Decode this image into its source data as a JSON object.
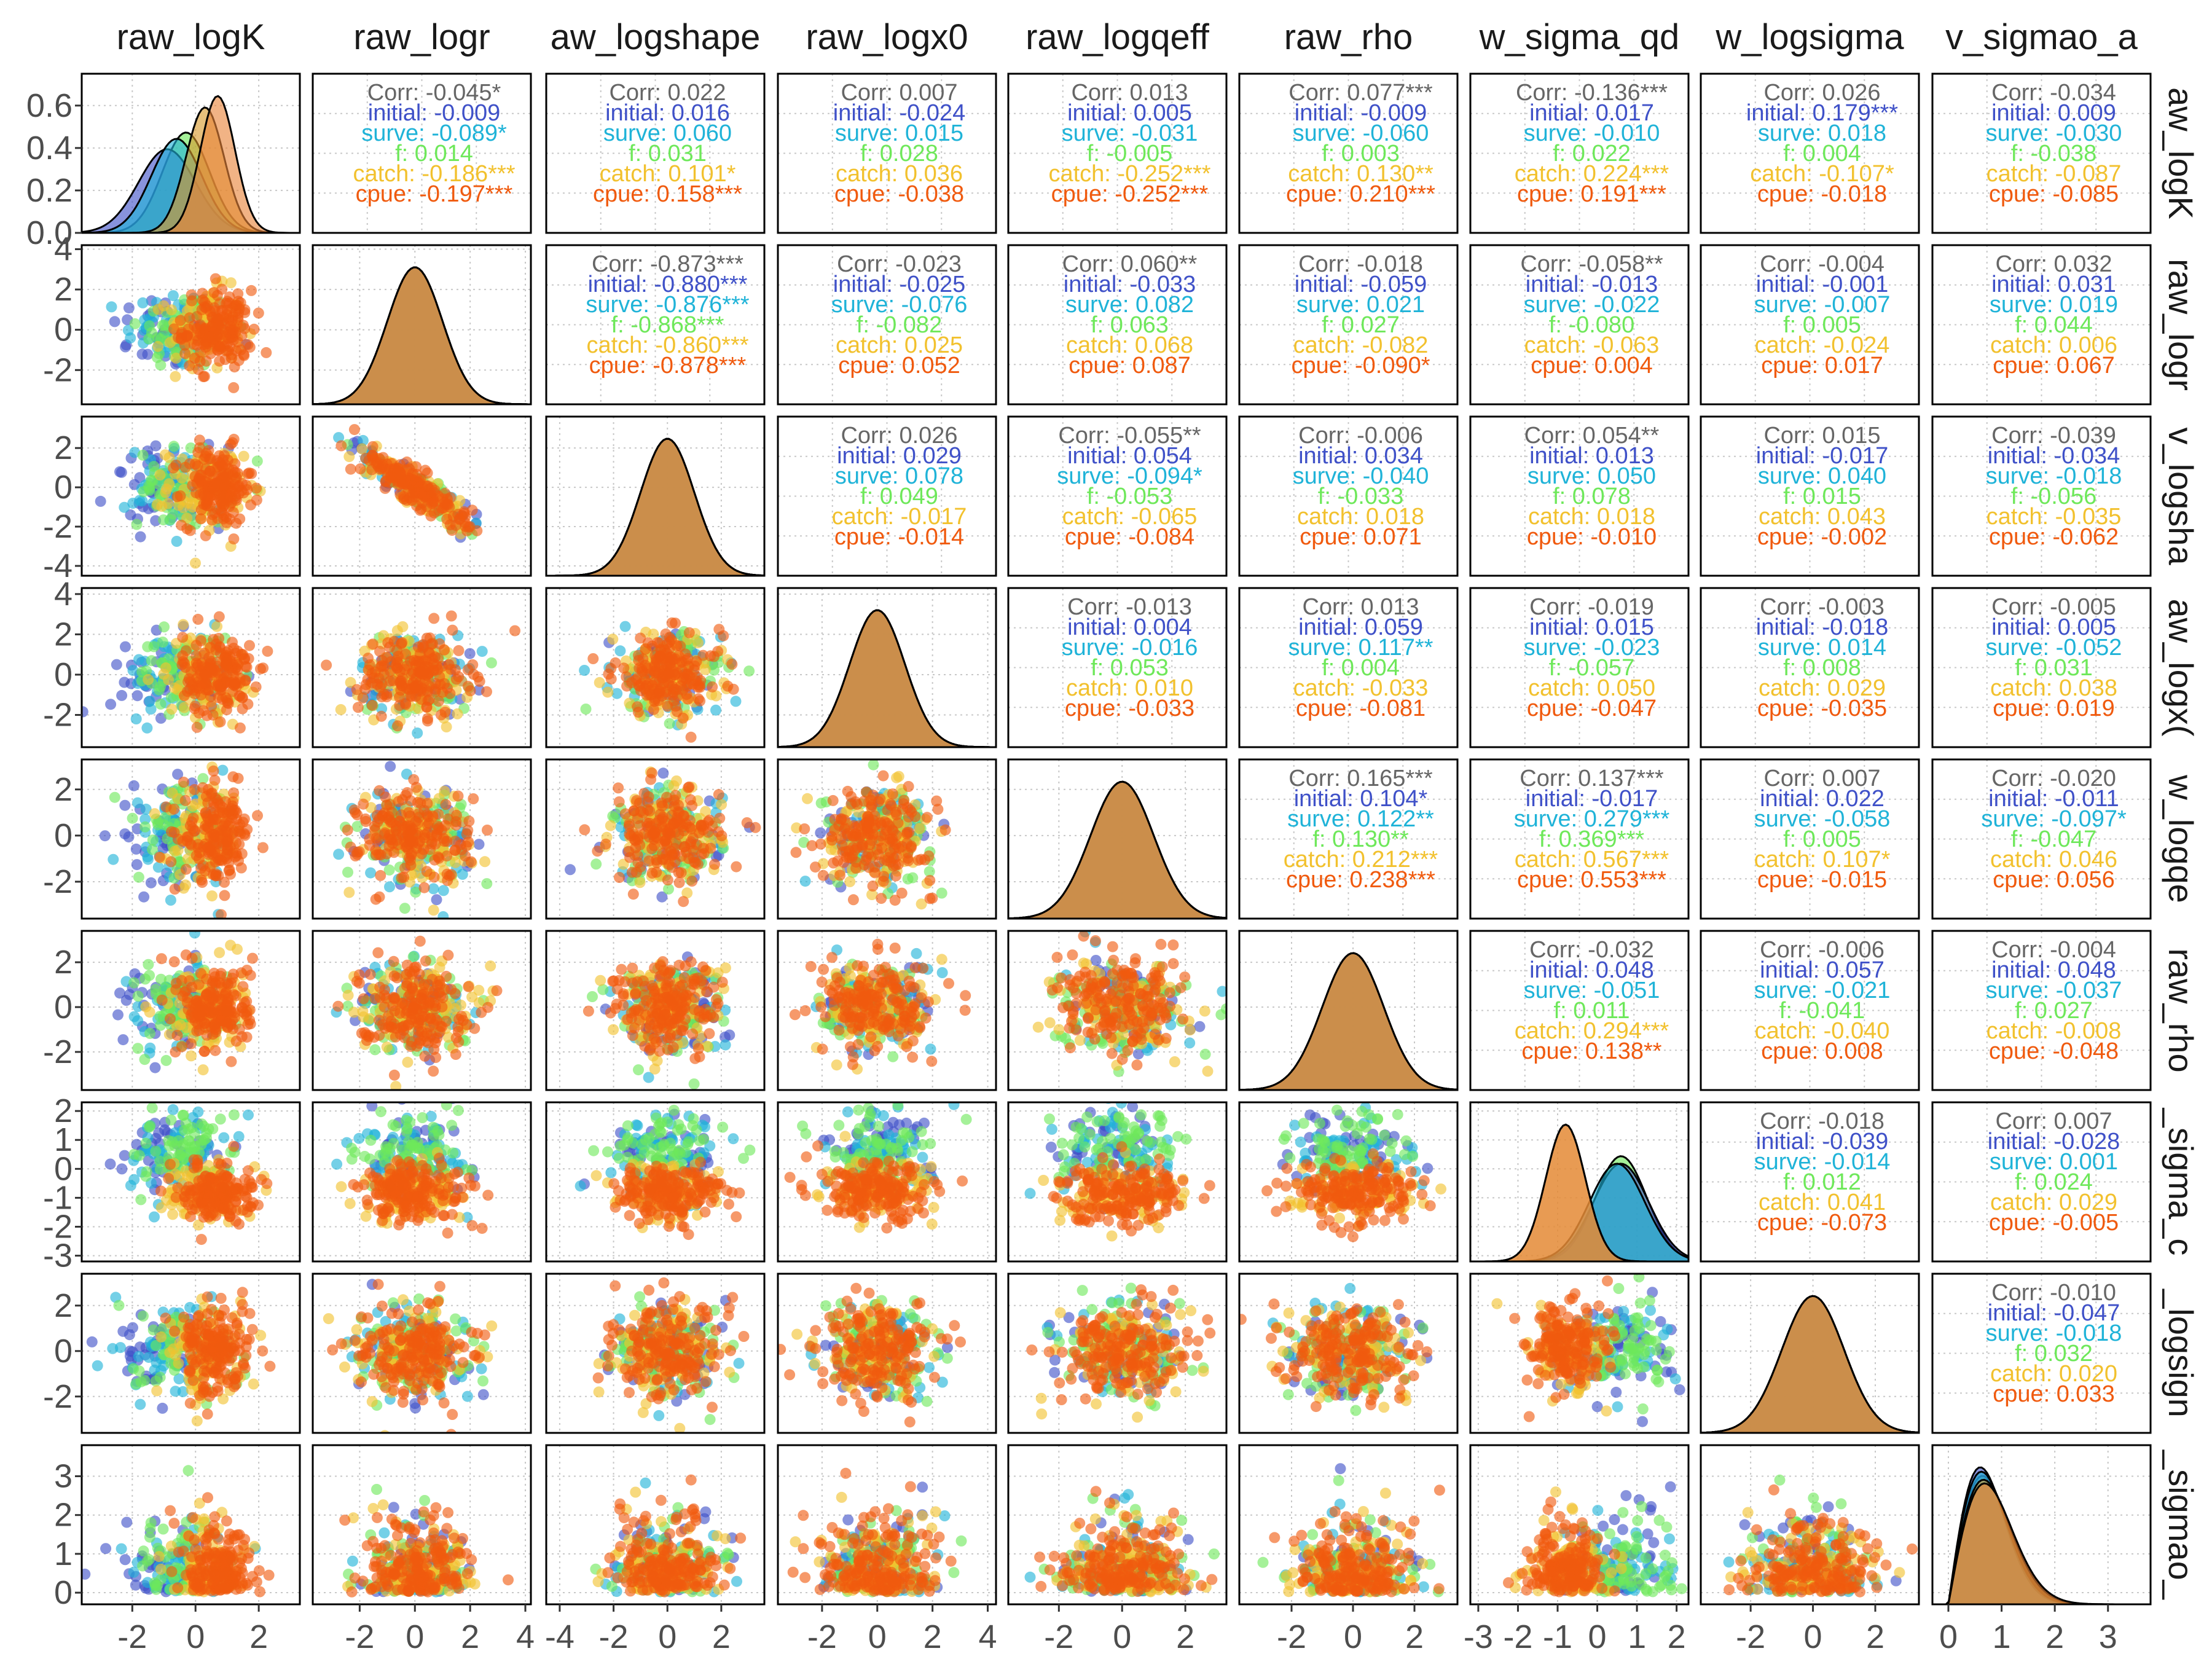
{
  "chart_data": {
    "type": "scatter-matrix",
    "variables": [
      "raw_logK",
      "raw_logr",
      "raw_logshape",
      "raw_logx0",
      "raw_logqeff",
      "raw_rho",
      "raw_sigma_qd",
      "raw_logsigma",
      "raw_sigmao_a"
    ],
    "column_labels": [
      "raw_logK",
      "raw_logr",
      "aw_logshape",
      "raw_logx0",
      "raw_logqeff",
      "raw_rho",
      "w_sigma_qd",
      "w_logsigma",
      "v_sigmao_a"
    ],
    "row_labels": [
      "aw_logK",
      "raw_logr",
      "v_logsha",
      "aw_logx(",
      "w_logqe",
      "raw_rho",
      "_sigma_c",
      "_logsign",
      "_sigmao_"
    ],
    "groups": [
      "initial",
      "surve",
      "f",
      "catch",
      "cpue"
    ],
    "colors": {
      "initial": "#3F51C8",
      "surve": "#1FB3D8",
      "f": "#6EE85A",
      "catch": "#F2C12E",
      "cpue": "#F05A0E",
      "corr": "#666666",
      "panel_border": "#000000",
      "grid": "#c8c8c8",
      "strip_text": "#1a1a1a",
      "tick_text": "#4d4d4d"
    },
    "correlations": [
      {
        "row": 0,
        "col": 1,
        "corr": "-0.045*",
        "initial": "-0.009",
        "surve": "-0.089*",
        "f": "0.014",
        "catch": "-0.186***",
        "cpue": "-0.197***"
      },
      {
        "row": 0,
        "col": 2,
        "corr": "0.022",
        "initial": "0.016",
        "surve": "0.060",
        "f": "0.031",
        "catch": "0.101*",
        "cpue": "0.158***"
      },
      {
        "row": 0,
        "col": 3,
        "corr": "0.007",
        "initial": "-0.024",
        "surve": "0.015",
        "f": "0.028",
        "catch": "0.036",
        "cpue": "-0.038"
      },
      {
        "row": 0,
        "col": 4,
        "corr": "0.013",
        "initial": "0.005",
        "surve": "-0.031",
        "f": "-0.005",
        "catch": "-0.252***",
        "cpue": "-0.252***"
      },
      {
        "row": 0,
        "col": 5,
        "corr": "0.077***",
        "initial": "-0.009",
        "surve": "-0.060",
        "f": "0.003",
        "catch": "0.130**",
        "cpue": "0.210***"
      },
      {
        "row": 0,
        "col": 6,
        "corr": "-0.136***",
        "initial": "0.017",
        "surve": "-0.010",
        "f": "0.022",
        "catch": "0.224***",
        "cpue": "0.191***"
      },
      {
        "row": 0,
        "col": 7,
        "corr": "0.026",
        "initial": "0.179***",
        "surve": "0.018",
        "f": "0.004",
        "catch": "-0.107*",
        "cpue": "-0.018"
      },
      {
        "row": 0,
        "col": 8,
        "corr": "-0.034",
        "initial": "0.009",
        "surve": "-0.030",
        "f": "-0.038",
        "catch": "-0.087",
        "cpue": "-0.085"
      },
      {
        "row": 1,
        "col": 2,
        "corr": "-0.873***",
        "initial": "-0.880***",
        "surve": "-0.876***",
        "f": "-0.868***",
        "catch": "-0.860***",
        "cpue": "-0.878***"
      },
      {
        "row": 1,
        "col": 3,
        "corr": "-0.023",
        "initial": "-0.025",
        "surve": "-0.076",
        "f": "-0.082",
        "catch": "0.025",
        "cpue": "0.052"
      },
      {
        "row": 1,
        "col": 4,
        "corr": "0.060**",
        "initial": "-0.033",
        "surve": "0.082",
        "f": "0.063",
        "catch": "0.068",
        "cpue": "0.087"
      },
      {
        "row": 1,
        "col": 5,
        "corr": "-0.018",
        "initial": "-0.059",
        "surve": "0.021",
        "f": "0.027",
        "catch": "-0.082",
        "cpue": "-0.090*"
      },
      {
        "row": 1,
        "col": 6,
        "corr": "-0.058**",
        "initial": "-0.013",
        "surve": "-0.022",
        "f": "-0.080",
        "catch": "-0.063",
        "cpue": "0.004"
      },
      {
        "row": 1,
        "col": 7,
        "corr": "-0.004",
        "initial": "-0.001",
        "surve": "-0.007",
        "f": "0.005",
        "catch": "-0.024",
        "cpue": "0.017"
      },
      {
        "row": 1,
        "col": 8,
        "corr": "0.032",
        "initial": "0.031",
        "surve": "0.019",
        "f": "0.044",
        "catch": "0.006",
        "cpue": "0.067"
      },
      {
        "row": 2,
        "col": 3,
        "corr": "0.026",
        "initial": "0.029",
        "surve": "0.078",
        "f": "0.049",
        "catch": "-0.017",
        "cpue": "-0.014"
      },
      {
        "row": 2,
        "col": 4,
        "corr": "-0.055**",
        "initial": "0.054",
        "surve": "-0.094*",
        "f": "-0.053",
        "catch": "-0.065",
        "cpue": "-0.084"
      },
      {
        "row": 2,
        "col": 5,
        "corr": "-0.006",
        "initial": "0.034",
        "surve": "-0.040",
        "f": "-0.033",
        "catch": "0.018",
        "cpue": "0.071"
      },
      {
        "row": 2,
        "col": 6,
        "corr": "0.054**",
        "initial": "0.013",
        "surve": "0.050",
        "f": "0.078",
        "catch": "0.018",
        "cpue": "-0.010"
      },
      {
        "row": 2,
        "col": 7,
        "corr": "0.015",
        "initial": "-0.017",
        "surve": "0.040",
        "f": "0.015",
        "catch": "0.043",
        "cpue": "-0.002"
      },
      {
        "row": 2,
        "col": 8,
        "corr": "-0.039",
        "initial": "-0.034",
        "surve": "-0.018",
        "f": "-0.056",
        "catch": "-0.035",
        "cpue": "-0.062"
      },
      {
        "row": 3,
        "col": 4,
        "corr": "-0.013",
        "initial": "0.004",
        "surve": "-0.016",
        "f": "0.053",
        "catch": "0.010",
        "cpue": "-0.033"
      },
      {
        "row": 3,
        "col": 5,
        "corr": "0.013",
        "initial": "0.059",
        "surve": "0.117**",
        "f": "0.004",
        "catch": "-0.033",
        "cpue": "-0.081"
      },
      {
        "row": 3,
        "col": 6,
        "corr": "-0.019",
        "initial": "0.015",
        "surve": "-0.023",
        "f": "-0.057",
        "catch": "0.050",
        "cpue": "-0.047"
      },
      {
        "row": 3,
        "col": 7,
        "corr": "-0.003",
        "initial": "-0.018",
        "surve": "0.014",
        "f": "0.008",
        "catch": "0.029",
        "cpue": "-0.035"
      },
      {
        "row": 3,
        "col": 8,
        "corr": "-0.005",
        "initial": "0.005",
        "surve": "-0.052",
        "f": "0.031",
        "catch": "0.038",
        "cpue": "0.019"
      },
      {
        "row": 4,
        "col": 5,
        "corr": "0.165***",
        "initial": "0.104*",
        "surve": "0.122**",
        "f": "0.130**",
        "catch": "0.212***",
        "cpue": "0.238***"
      },
      {
        "row": 4,
        "col": 6,
        "corr": "0.137***",
        "initial": "-0.017",
        "surve": "0.279***",
        "f": "0.369***",
        "catch": "0.567***",
        "cpue": "0.553***"
      },
      {
        "row": 4,
        "col": 7,
        "corr": "0.007",
        "initial": "0.022",
        "surve": "-0.058",
        "f": "0.005",
        "catch": "0.107*",
        "cpue": "-0.015"
      },
      {
        "row": 4,
        "col": 8,
        "corr": "-0.020",
        "initial": "-0.011",
        "surve": "-0.097*",
        "f": "-0.047",
        "catch": "0.046",
        "cpue": "0.056"
      },
      {
        "row": 5,
        "col": 6,
        "corr": "-0.032",
        "initial": "0.048",
        "surve": "-0.051",
        "f": "0.011",
        "catch": "0.294***",
        "cpue": "0.138**"
      },
      {
        "row": 5,
        "col": 7,
        "corr": "-0.006",
        "initial": "0.057",
        "surve": "-0.021",
        "f": "-0.041",
        "catch": "-0.040",
        "cpue": "0.008"
      },
      {
        "row": 5,
        "col": 8,
        "corr": "-0.004",
        "initial": "0.048",
        "surve": "-0.037",
        "f": "0.027",
        "catch": "-0.008",
        "cpue": "-0.048"
      },
      {
        "row": 6,
        "col": 7,
        "corr": "-0.018",
        "initial": "-0.039",
        "surve": "-0.014",
        "f": "0.012",
        "catch": "0.041",
        "cpue": "-0.073"
      },
      {
        "row": 6,
        "col": 8,
        "corr": "0.007",
        "initial": "-0.028",
        "surve": "0.001",
        "f": "0.024",
        "catch": "0.029",
        "cpue": "-0.005"
      },
      {
        "row": 7,
        "col": 8,
        "corr": "-0.010",
        "initial": "-0.047",
        "surve": "-0.018",
        "f": "0.032",
        "catch": "0.020",
        "cpue": "0.033"
      }
    ],
    "left_ticks": [
      {
        "ticks": [
          "0.0",
          "0.2",
          "0.4",
          "0.6"
        ],
        "values": [
          0,
          0.2,
          0.4,
          0.6
        ],
        "range": [
          0,
          0.75
        ]
      },
      {
        "ticks": [
          "-2",
          "0",
          "2",
          "4"
        ],
        "values": [
          -2,
          0,
          2,
          4
        ],
        "range": [
          -3.7,
          4.2
        ]
      },
      {
        "ticks": [
          "-4",
          "-2",
          "0",
          "2"
        ],
        "values": [
          -4,
          -2,
          0,
          2
        ],
        "range": [
          -4.5,
          3.6
        ]
      },
      {
        "ticks": [
          "-2",
          "0",
          "2",
          "4"
        ],
        "values": [
          -2,
          0,
          2,
          4
        ],
        "range": [
          -3.6,
          4.3
        ]
      },
      {
        "ticks": [
          "-2",
          "0",
          "2"
        ],
        "values": [
          -2,
          0,
          2
        ],
        "range": [
          -3.6,
          3.3
        ]
      },
      {
        "ticks": [
          "-2",
          "0",
          "2"
        ],
        "values": [
          -2,
          0,
          2
        ],
        "range": [
          -3.7,
          3.4
        ]
      },
      {
        "ticks": [
          "-3",
          "-2",
          "-1",
          "0",
          "1",
          "2"
        ],
        "values": [
          -3,
          -2,
          -1,
          0,
          1,
          2
        ],
        "range": [
          -3.2,
          2.3
        ]
      },
      {
        "ticks": [
          "-2",
          "0",
          "2"
        ],
        "values": [
          -2,
          0,
          2
        ],
        "range": [
          -3.6,
          3.4
        ]
      },
      {
        "ticks": [
          "0",
          "1",
          "2",
          "3"
        ],
        "values": [
          0,
          1,
          2,
          3
        ],
        "range": [
          -0.3,
          3.8
        ]
      }
    ],
    "bottom_ticks": [
      {
        "ticks": [
          "-2",
          "0",
          "2"
        ],
        "values": [
          -2,
          0,
          2
        ],
        "range": [
          -3.6,
          3.3
        ]
      },
      {
        "ticks": [
          "-2",
          "0",
          "2",
          "4"
        ],
        "values": [
          -2,
          0,
          2,
          4
        ],
        "range": [
          -3.7,
          4.2
        ]
      },
      {
        "ticks": [
          "-4",
          "-2",
          "0",
          "2"
        ],
        "values": [
          -4,
          -2,
          0,
          2
        ],
        "range": [
          -4.5,
          3.6
        ]
      },
      {
        "ticks": [
          "-2",
          "0",
          "2",
          "4"
        ],
        "values": [
          -2,
          0,
          2,
          4
        ],
        "range": [
          -3.6,
          4.3
        ]
      },
      {
        "ticks": [
          "-2",
          "0",
          "2"
        ],
        "values": [
          -2,
          0,
          2
        ],
        "range": [
          -3.6,
          3.3
        ]
      },
      {
        "ticks": [
          "-2",
          "0",
          "2"
        ],
        "values": [
          -2,
          0,
          2
        ],
        "range": [
          -3.7,
          3.4
        ]
      },
      {
        "ticks": [
          "-3",
          "-2",
          "-1",
          "0",
          "1",
          "2"
        ],
        "values": [
          -3,
          -2,
          -1,
          0,
          1,
          2
        ],
        "range": [
          -3.2,
          2.3
        ]
      },
      {
        "ticks": [
          "-2",
          "0",
          "2"
        ],
        "values": [
          -2,
          0,
          2
        ],
        "range": [
          -3.6,
          3.4
        ]
      },
      {
        "ticks": [
          "0",
          "1",
          "2",
          "3"
        ],
        "values": [
          0,
          1,
          2,
          3
        ],
        "range": [
          -0.3,
          3.8
        ]
      }
    ]
  }
}
